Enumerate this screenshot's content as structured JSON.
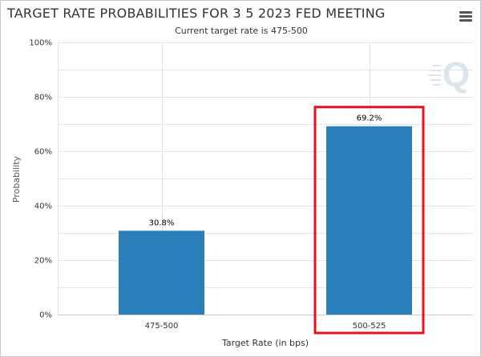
{
  "chart_data": {
    "type": "bar",
    "title": "TARGET RATE PROBABILITIES FOR 3 5 2023 FED MEETING",
    "subtitle": "Current target rate is 475-500",
    "categories": [
      "475-500",
      "500-525"
    ],
    "values": [
      30.8,
      69.2
    ],
    "data_labels": [
      "30.8%",
      "69.2%"
    ],
    "xlabel": "Target Rate (in bps)",
    "ylabel": "Probability",
    "ylim": [
      0,
      100
    ],
    "yticks": [
      "0%",
      "20%",
      "40%",
      "60%",
      "80%",
      "100%"
    ],
    "grid": true,
    "bar_color": "#2a7fba",
    "highlight": {
      "category": "500-525",
      "color": "#e8101e"
    }
  },
  "watermark_icon": "q-logo-icon",
  "menu_icon": "hamburger-menu-icon"
}
